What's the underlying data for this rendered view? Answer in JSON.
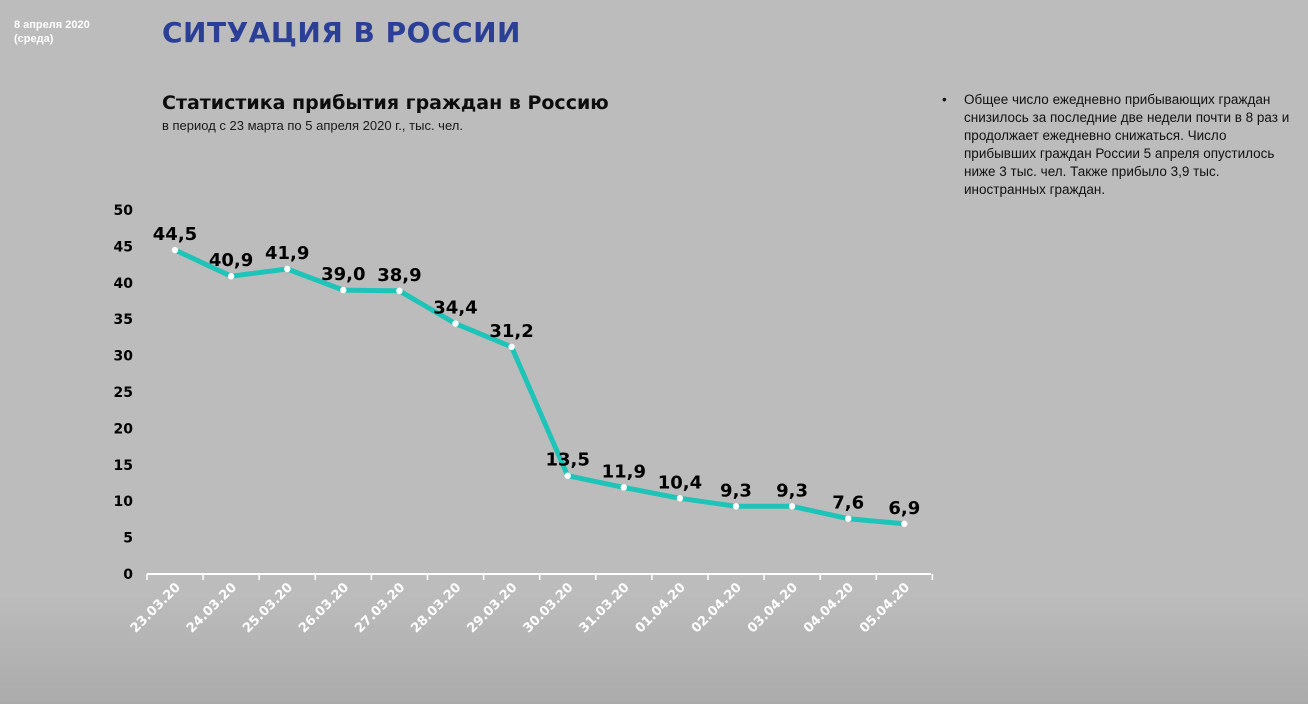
{
  "header": {
    "date_line1": "8 апреля 2020",
    "date_line2": "(среда)",
    "title": "СИТУАЦИЯ В РОССИИ"
  },
  "note": {
    "bullet": "•",
    "text": "Общее число ежедневно прибывающих граждан снизилось за последние две недели почти в 8 раз и продолжает ежедневно снижаться.  Число прибывших граждан России 5 апреля опустилось ниже 3 тыс. чел. Также прибыло 3,9 тыс. иностранных граждан."
  },
  "colors": {
    "background": "#bcbcbc",
    "title": "#2b3f96",
    "line": "#1ec4b8",
    "marker": "#ffffff",
    "axis": "#ffffff"
  },
  "chart_data": {
    "type": "line",
    "title": "Статистика прибытия граждан в Россию",
    "subtitle": "в период с 23 марта по 5 апреля 2020 г., тыс. чел.",
    "xlabel": "",
    "ylabel": "",
    "ylim": [
      0,
      50
    ],
    "yticks": [
      0,
      5,
      10,
      15,
      20,
      25,
      30,
      35,
      40,
      45,
      50
    ],
    "grid": false,
    "legend": "none",
    "categories": [
      "23.03.20",
      "24.03.20",
      "25.03.20",
      "26.03.20",
      "27.03.20",
      "28.03.20",
      "29.03.20",
      "30.03.20",
      "31.03.20",
      "01.04.20",
      "02.04.20",
      "03.04.20",
      "04.04.20",
      "05.04.20"
    ],
    "series": [
      {
        "values": [
          44.5,
          40.9,
          41.9,
          39.0,
          38.9,
          34.4,
          31.2,
          13.5,
          11.9,
          10.4,
          9.3,
          9.3,
          7.6,
          6.9
        ],
        "labels": [
          "44,5",
          "40,9",
          "41,9",
          "39,0",
          "38,9",
          "34,4",
          "31,2",
          "13,5",
          "11,9",
          "10,4",
          "9,3",
          "9,3",
          "7,6",
          "6,9"
        ]
      }
    ]
  }
}
